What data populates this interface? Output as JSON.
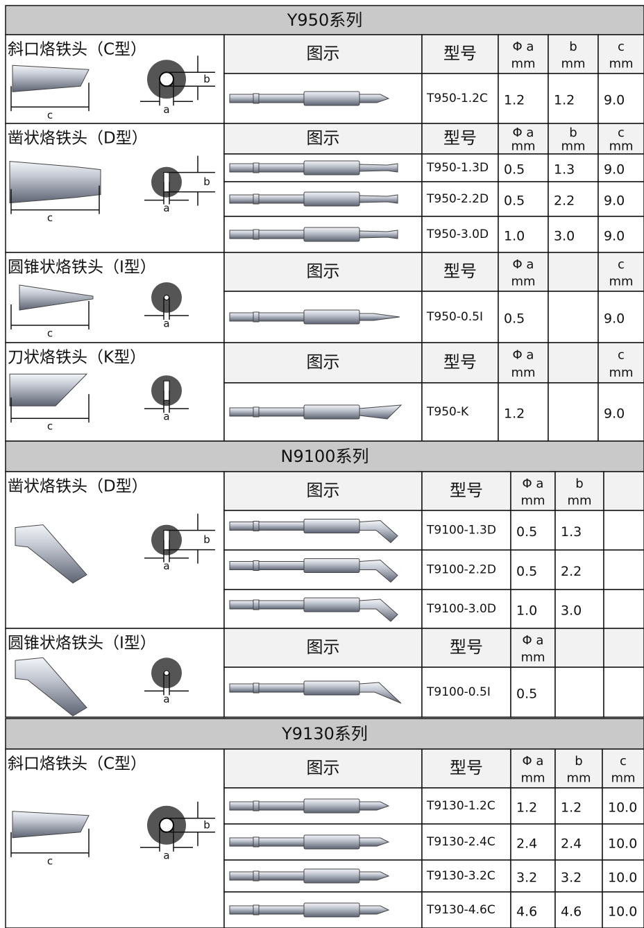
{
  "sections": [
    {
      "title": "Y950系列",
      "groups": [
        {
          "name": "斜口烙铁头（C型）",
          "labels": {
            "a": "a",
            "b": "b",
            "c": "c"
          },
          "header": {
            "illustration": "图示",
            "model": "型号",
            "cols": [
              {
                "name": "Φ a",
                "unit": "mm"
              },
              {
                "name": "b",
                "unit": "mm"
              },
              {
                "name": "c",
                "unit": "mm"
              }
            ]
          },
          "rows": [
            {
              "model": "T950-1.2C",
              "values": [
                "1.2",
                "1.2",
                "9.0"
              ]
            }
          ]
        },
        {
          "name": "凿状烙铁头（D型）",
          "labels": {
            "a": "a",
            "b": "b",
            "c": "c"
          },
          "header": {
            "illustration": "图示",
            "model": "型号",
            "cols": [
              {
                "name": "Φ a",
                "unit": "mm"
              },
              {
                "name": "b",
                "unit": "mm"
              },
              {
                "name": "c",
                "unit": "mm"
              }
            ]
          },
          "rows": [
            {
              "model": "T950-1.3D",
              "values": [
                "0.5",
                "1.3",
                "9.0"
              ]
            },
            {
              "model": "T950-2.2D",
              "values": [
                "0.5",
                "2.2",
                "9.0"
              ]
            },
            {
              "model": "T950-3.0D",
              "values": [
                "1.0",
                "3.0",
                "9.0"
              ]
            }
          ]
        },
        {
          "name": "圆锥状烙铁头（I型）",
          "labels": {
            "a": "a",
            "c": "c"
          },
          "header": {
            "illustration": "图示",
            "model": "型号",
            "cols": [
              {
                "name": "Φ a",
                "unit": "mm"
              },
              null,
              {
                "name": "c",
                "unit": "mm"
              }
            ]
          },
          "rows": [
            {
              "model": "T950-0.5I",
              "values": [
                "0.5",
                null,
                "9.0"
              ]
            }
          ]
        },
        {
          "name": "刀状烙铁头（K型）",
          "labels": {
            "a": "a",
            "c": "c"
          },
          "header": {
            "illustration": "图示",
            "model": "型号",
            "cols": [
              {
                "name": "Φ a",
                "unit": "mm"
              },
              null,
              {
                "name": "c",
                "unit": "mm"
              }
            ]
          },
          "rows": [
            {
              "model": "T950-K",
              "values": [
                "1.2",
                null,
                "9.0"
              ]
            }
          ]
        }
      ]
    },
    {
      "title": "N9100系列",
      "groups": [
        {
          "name": "凿状烙铁头（D型）",
          "labels": {
            "a": "a",
            "b": "b"
          },
          "header": {
            "illustration": "图示",
            "model": "型号",
            "cols": [
              {
                "name": "Φ a",
                "unit": "mm"
              },
              {
                "name": "b",
                "unit": "mm"
              },
              null
            ]
          },
          "rows": [
            {
              "model": "T9100-1.3D",
              "values": [
                "0.5",
                "1.3",
                null
              ]
            },
            {
              "model": "T9100-2.2D",
              "values": [
                "0.5",
                "2.2",
                null
              ]
            },
            {
              "model": "T9100-3.0D",
              "values": [
                "1.0",
                "3.0",
                null
              ]
            }
          ]
        },
        {
          "name": "圆锥状烙铁头（I型）",
          "labels": {
            "a": "a"
          },
          "header": {
            "illustration": "图示",
            "model": "型号",
            "cols": [
              {
                "name": "Φ a",
                "unit": "mm"
              },
              null,
              null
            ]
          },
          "rows": [
            {
              "model": "T9100-0.5I",
              "values": [
                "0.5",
                null,
                null
              ]
            }
          ]
        }
      ]
    },
    {
      "title": "Y9130系列",
      "groups": [
        {
          "name": "斜口烙铁头（C型）",
          "labels": {
            "a": "a",
            "b": "b",
            "c": "c"
          },
          "header": {
            "illustration": "图示",
            "model": "型号",
            "cols": [
              {
                "name": "Φ a",
                "unit": "mm"
              },
              {
                "name": "b",
                "unit": "mm"
              },
              {
                "name": "c",
                "unit": "mm"
              }
            ]
          },
          "rows": [
            {
              "model": "T9130-1.2C",
              "values": [
                "1.2",
                "1.2",
                "10.0"
              ]
            },
            {
              "model": "T9130-2.4C",
              "values": [
                "2.4",
                "2.4",
                "10.0"
              ]
            },
            {
              "model": "T9130-3.2C",
              "values": [
                "3.2",
                "3.2",
                "10.0"
              ]
            },
            {
              "model": "T9130-4.6C",
              "values": [
                "4.6",
                "4.6",
                "10.0"
              ]
            }
          ]
        }
      ]
    }
  ]
}
